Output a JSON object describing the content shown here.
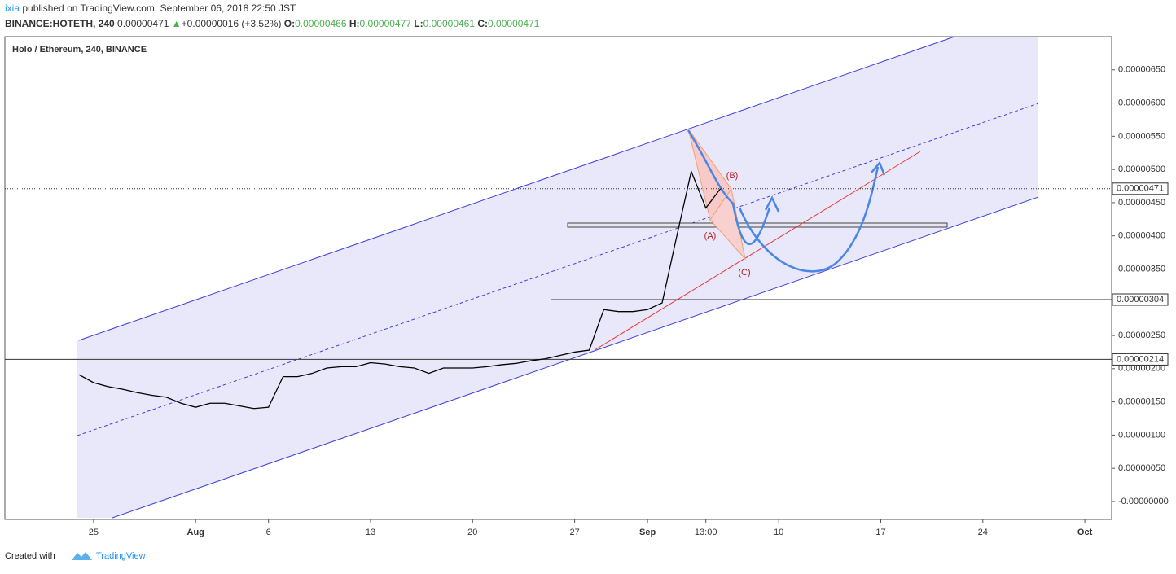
{
  "header": {
    "author": "ixia",
    "published": "published on TradingView.com, September 06, 2018 22:50 JST",
    "symbol": "BINANCE:HOTETH, 240",
    "last": "0.00000471",
    "arrow": "▲",
    "change": "+0.00000016 (+3.52%)",
    "o_label": "O:",
    "o": "0.00000466",
    "h_label": "H:",
    "h": "0.00000477",
    "l_label": "L:",
    "l": "0.00000461",
    "c_label": "C:",
    "c": "0.00000471"
  },
  "footer": {
    "created": "Created with",
    "brand": "TradingView"
  },
  "chart_data": {
    "type": "line",
    "title": "Holo / Ethereum, 240, BINANCE",
    "color": "#000000",
    "categories": [
      null,
      "25",
      null,
      null,
      null,
      null,
      null,
      null,
      "Aug",
      null,
      null,
      null,
      null,
      "6",
      null,
      null,
      null,
      null,
      null,
      null,
      "13",
      null,
      null,
      null,
      null,
      null,
      null,
      "20",
      null,
      null,
      null,
      null,
      null,
      null,
      "27",
      null,
      null,
      null,
      null,
      "Sep",
      null,
      null,
      null,
      "13:00",
      null,
      null,
      null,
      null,
      "10",
      null,
      null,
      null,
      null,
      null,
      null,
      "17",
      null,
      null,
      null,
      null,
      null,
      null,
      "24",
      null,
      null,
      null,
      null,
      null,
      null,
      "Oct",
      null,
      null
    ],
    "values": [
      1.91e-06,
      1.79e-06,
      1.73e-06,
      1.69e-06,
      1.64e-06,
      1.6e-06,
      1.57e-06,
      1.48e-06,
      1.42e-06,
      1.48e-06,
      1.48e-06,
      1.44e-06,
      1.4e-06,
      1.42e-06,
      1.88e-06,
      1.88e-06,
      1.93e-06,
      2.01e-06,
      2.03e-06,
      2.03e-06,
      2.09e-06,
      2.07e-06,
      2.03e-06,
      2.01e-06,
      1.93e-06,
      2.01e-06,
      2.01e-06,
      2.01e-06,
      2.03e-06,
      2.06e-06,
      2.08e-06,
      2.12e-06,
      2.15e-06,
      2.2e-06,
      2.25e-06,
      2.28e-06,
      2.89e-06,
      2.86e-06,
      2.86e-06,
      2.89e-06,
      2.99e-06,
      3.99e-06,
      4.97e-06,
      4.42e-06,
      4.71e-06,
      null,
      null,
      null,
      null,
      null,
      null,
      null,
      null,
      null,
      null,
      null,
      null,
      null,
      null,
      null,
      null,
      null,
      null,
      null,
      null,
      null,
      null,
      null,
      null,
      null,
      null,
      null
    ],
    "ylim": [
      -2.7e-07,
      7e-06
    ],
    "yticks": [
      {
        "value": 0,
        "label": "-0.00000000"
      },
      {
        "value": 5e-07,
        "label": "0.00000050"
      },
      {
        "value": 1e-06,
        "label": "0.00000100"
      },
      {
        "value": 1.5e-06,
        "label": "0.00000150"
      },
      {
        "value": 2e-06,
        "label": "0.00000200"
      },
      {
        "value": 2.5e-06,
        "label": "0.00000250"
      },
      {
        "value": 3e-06,
        "label": "0.00000300"
      },
      {
        "value": 3.5e-06,
        "label": "0.00000350"
      },
      {
        "value": 4e-06,
        "label": "0.00000400"
      },
      {
        "value": 4.5e-06,
        "label": "0.00000450"
      },
      {
        "value": 5e-06,
        "label": "0.00000500"
      },
      {
        "value": 5.5e-06,
        "label": "0.00000550"
      },
      {
        "value": 6e-06,
        "label": "0.00000600"
      },
      {
        "value": 6.5e-06,
        "label": "0.00000650"
      }
    ],
    "price_lines": [
      4.71e-06,
      3.04e-06,
      2.14e-06
    ],
    "annotations": [
      "(A)",
      "(B)",
      "(C)"
    ]
  }
}
